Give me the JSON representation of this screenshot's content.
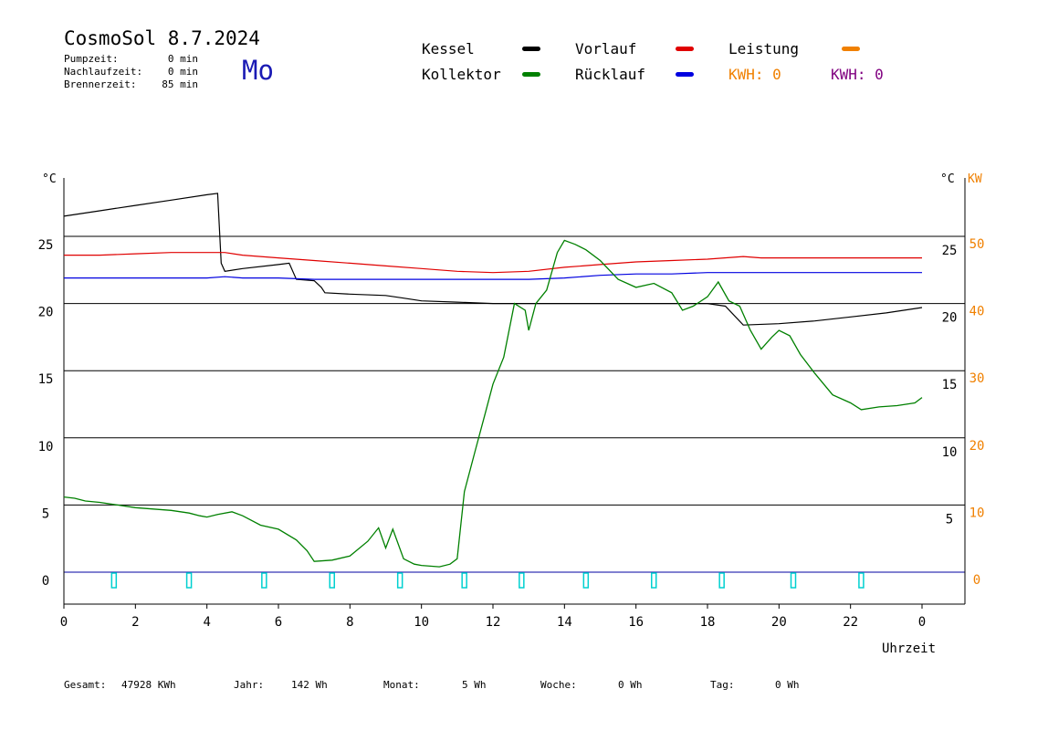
{
  "header": {
    "title": "CosmoSol 8.7.2024",
    "weekday": "Mo",
    "stats": [
      {
        "label": "Pumpzeit:",
        "value": "0 min"
      },
      {
        "label": "Nachlaufzeit:",
        "value": "0 min"
      },
      {
        "label": "Brennerzeit:",
        "value": "85 min"
      }
    ]
  },
  "legend": {
    "kessel": {
      "label": "Kessel",
      "color": "#000000"
    },
    "kollektor": {
      "label": "Kollektor",
      "color": "#008000"
    },
    "vorlauf": {
      "label": "Vorlauf",
      "color": "#e00000"
    },
    "ruecklauf": {
      "label": "Rücklauf",
      "color": "#0000e0"
    },
    "leistung": {
      "label": "Leistung",
      "color": "#f08000"
    },
    "kwh_orange": {
      "label": "KWH: 0",
      "color": "#f08000"
    },
    "kwh_purple": {
      "label": "KWH: 0",
      "color": "#800080"
    }
  },
  "footer": [
    {
      "label": "Gesamt:",
      "value": "47928 KWh"
    },
    {
      "label": "Jahr:",
      "value": "142 Wh"
    },
    {
      "label": "Monat:",
      "value": "5 Wh"
    },
    {
      "label": "Woche:",
      "value": "0 Wh"
    },
    {
      "label": "Tag:",
      "value": "0 Wh"
    }
  ],
  "chart_data": {
    "type": "line",
    "xlabel": "Uhrzeit",
    "ylabel_left": "°C",
    "ylabel_right": "°C",
    "ylabel_right2": "KW",
    "x_ticks": [
      "0",
      "2",
      "4",
      "6",
      "8",
      "10",
      "12",
      "14",
      "16",
      "18",
      "20",
      "22",
      "0"
    ],
    "y_ticks_left": [
      "0",
      "5",
      "10",
      "15",
      "20",
      "25"
    ],
    "y_ticks_right": [
      "5",
      "10",
      "15",
      "20",
      "25"
    ],
    "y_ticks_kw": [
      "0",
      "10",
      "20",
      "30",
      "40",
      "50"
    ],
    "xlim": [
      0,
      24
    ],
    "ylim": [
      -2.4,
      28.5
    ],
    "grid_y": [
      0,
      5,
      10,
      15,
      20,
      25
    ],
    "series": [
      {
        "name": "Kessel",
        "color": "#000000",
        "x": [
          0,
          1,
          2,
          3,
          4,
          4.3,
          4.4,
          4.5,
          5,
          6,
          6.3,
          6.5,
          7,
          7.2,
          7.3,
          8,
          9,
          9.5,
          10,
          11,
          12,
          13,
          14,
          15,
          16,
          17,
          18,
          18.5,
          19,
          20,
          21,
          22,
          23,
          24
        ],
        "y": [
          26.5,
          26.9,
          27.3,
          27.7,
          28.1,
          28.2,
          23,
          22.4,
          22.6,
          22.9,
          23.0,
          21.8,
          21.7,
          21.2,
          20.8,
          20.7,
          20.6,
          20.4,
          20.2,
          20.1,
          20.0,
          20.0,
          20.0,
          20.0,
          20.0,
          20.0,
          20.0,
          19.8,
          18.4,
          18.5,
          18.7,
          19.0,
          19.3,
          19.7
        ]
      },
      {
        "name": "Vorlauf",
        "color": "#e00000",
        "x": [
          0,
          1,
          2,
          3,
          4,
          4.5,
          5,
          6,
          7,
          8,
          9,
          10,
          11,
          12,
          13,
          14,
          15,
          16,
          17,
          18,
          19,
          19.5,
          20,
          21,
          22,
          23,
          24
        ],
        "y": [
          23.6,
          23.6,
          23.7,
          23.8,
          23.8,
          23.8,
          23.6,
          23.4,
          23.2,
          23.0,
          22.8,
          22.6,
          22.4,
          22.3,
          22.4,
          22.7,
          22.9,
          23.1,
          23.2,
          23.3,
          23.5,
          23.4,
          23.4,
          23.4,
          23.4,
          23.4,
          23.4
        ]
      },
      {
        "name": "Rücklauf",
        "color": "#0000e0",
        "x": [
          0,
          1,
          2,
          3,
          4,
          4.5,
          5,
          6,
          7,
          8,
          9,
          10,
          11,
          12,
          13,
          14,
          15,
          16,
          17,
          18,
          19,
          20,
          21,
          22,
          23,
          24
        ],
        "y": [
          21.9,
          21.9,
          21.9,
          21.9,
          21.9,
          22.0,
          21.9,
          21.9,
          21.8,
          21.8,
          21.8,
          21.8,
          21.8,
          21.8,
          21.8,
          21.9,
          22.1,
          22.2,
          22.2,
          22.3,
          22.3,
          22.3,
          22.3,
          22.3,
          22.3,
          22.3
        ]
      },
      {
        "name": "Kollektor",
        "color": "#008000",
        "x": [
          0,
          0.3,
          0.6,
          1,
          1.5,
          2,
          2.5,
          3,
          3.5,
          3.8,
          4,
          4.3,
          4.7,
          5,
          5.5,
          6,
          6.5,
          6.8,
          7,
          7.5,
          8,
          8.5,
          8.8,
          9,
          9.2,
          9.5,
          9.8,
          10,
          10.5,
          10.8,
          11,
          11.2,
          11.5,
          11.8,
          12,
          12.3,
          12.6,
          12.9,
          13,
          13.2,
          13.5,
          13.8,
          14,
          14.3,
          14.6,
          15,
          15.5,
          16,
          16.5,
          17,
          17.3,
          17.6,
          18,
          18.3,
          18.6,
          18.9,
          19.2,
          19.5,
          19.8,
          20,
          20.3,
          20.6,
          21,
          21.5,
          22,
          22.3,
          22.8,
          23.3,
          23.8,
          24
        ],
        "y": [
          5.6,
          5.5,
          5.3,
          5.2,
          5.0,
          4.8,
          4.7,
          4.6,
          4.4,
          4.2,
          4.1,
          4.3,
          4.5,
          4.2,
          3.5,
          3.2,
          2.4,
          1.6,
          0.8,
          0.9,
          1.2,
          2.3,
          3.3,
          1.8,
          3.2,
          1.0,
          0.6,
          0.5,
          0.4,
          0.6,
          1.0,
          6,
          9,
          12,
          14,
          16,
          20,
          19.5,
          18,
          20,
          21,
          23.8,
          24.7,
          24.4,
          24.0,
          23.2,
          21.8,
          21.2,
          21.5,
          20.8,
          19.5,
          19.8,
          20.5,
          21.6,
          20.2,
          19.8,
          18.0,
          16.6,
          17.5,
          18.0,
          17.6,
          16.2,
          14.8,
          13.2,
          12.6,
          12.1,
          12.3,
          12.4,
          12.6,
          13.0
        ]
      }
    ],
    "markers": {
      "name": "Leistung-Impulse",
      "color": "#00d0d0",
      "x": [
        1.4,
        3.5,
        5.6,
        7.5,
        9.4,
        11.2,
        12.8,
        14.6,
        16.5,
        18.4,
        20.4,
        22.3
      ]
    }
  }
}
